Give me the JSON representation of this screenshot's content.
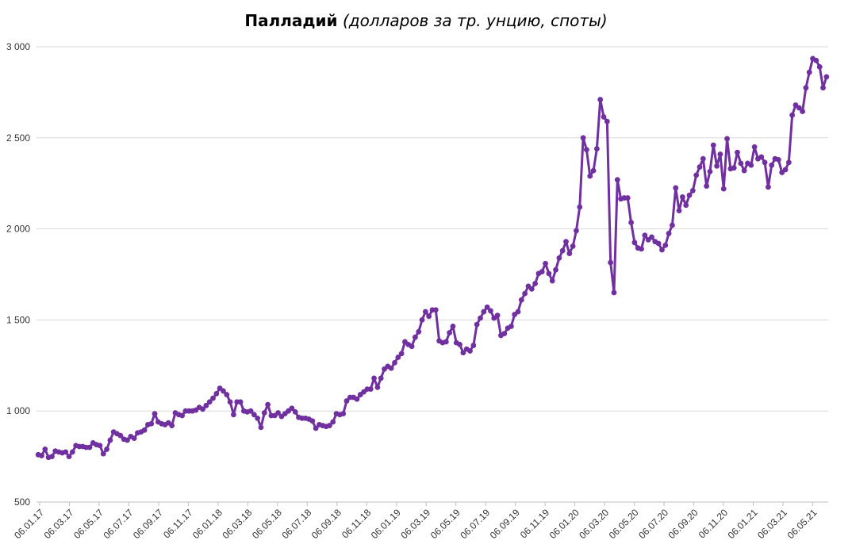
{
  "chart_data": {
    "type": "line",
    "title": "Палладий",
    "subtitle": "(долларов за тр. унцию, споты)",
    "xlabel": "",
    "ylabel": "",
    "ylim": [
      500,
      3000
    ],
    "yticks": [
      500,
      1000,
      1500,
      2000,
      2500,
      3000
    ],
    "ytick_labels": [
      "500",
      "1 000",
      "1 500",
      "2 000",
      "2 500",
      "3 000"
    ],
    "xtick_labels": [
      "06.01.17",
      "06.03.17",
      "06.05.17",
      "06.07.17",
      "06.09.17",
      "06.11.17",
      "06.01.18",
      "06.03.18",
      "06.05.18",
      "06.07.18",
      "06.09.18",
      "06.11.18",
      "06.01.19",
      "06.03.19",
      "06.05.19",
      "06.07.19",
      "06.09.19",
      "06.11.19",
      "06.01.20",
      "06.03.20",
      "06.05.20",
      "06.07.20",
      "06.09.20",
      "06.11.20",
      "06.01.21",
      "06.03.21",
      "06.05.21"
    ],
    "grid": true,
    "legend": "none",
    "series_color": "#7030A0",
    "series": [
      {
        "values": [
          760,
          755,
          790,
          745,
          750,
          780,
          775,
          770,
          775,
          750,
          775,
          810,
          805,
          805,
          800,
          800,
          825,
          815,
          810,
          765,
          790,
          840,
          885,
          875,
          865,
          845,
          840,
          860,
          850,
          880,
          885,
          895,
          925,
          930,
          985,
          940,
          930,
          925,
          935,
          920,
          990,
          980,
          975,
          1000,
          1000,
          1000,
          1005,
          1020,
          1010,
          1030,
          1050,
          1070,
          1095,
          1125,
          1110,
          1090,
          1050,
          980,
          1050,
          1050,
          1000,
          995,
          1000,
          980,
          960,
          910,
          990,
          1035,
          975,
          975,
          990,
          970,
          985,
          1000,
          1015,
          995,
          965,
          960,
          960,
          955,
          945,
          905,
          925,
          920,
          915,
          920,
          940,
          985,
          980,
          985,
          1055,
          1075,
          1075,
          1065,
          1090,
          1105,
          1120,
          1120,
          1180,
          1130,
          1180,
          1230,
          1245,
          1235,
          1265,
          1295,
          1315,
          1380,
          1365,
          1355,
          1405,
          1435,
          1500,
          1545,
          1520,
          1555,
          1555,
          1385,
          1375,
          1380,
          1430,
          1465,
          1375,
          1365,
          1320,
          1340,
          1330,
          1360,
          1475,
          1510,
          1545,
          1570,
          1550,
          1510,
          1525,
          1415,
          1425,
          1455,
          1465,
          1530,
          1545,
          1610,
          1645,
          1685,
          1670,
          1700,
          1755,
          1765,
          1810,
          1755,
          1715,
          1775,
          1840,
          1880,
          1930,
          1865,
          1905,
          1990,
          2120,
          2500,
          2435,
          2290,
          2320,
          2440,
          2710,
          2615,
          2590,
          1815,
          1650,
          2270,
          2165,
          2170,
          2170,
          2035,
          1925,
          1895,
          1890,
          1965,
          1940,
          1955,
          1930,
          1920,
          1885,
          1910,
          1975,
          2020,
          2225,
          2100,
          2175,
          2130,
          2185,
          2210,
          2295,
          2340,
          2385,
          2235,
          2315,
          2460,
          2345,
          2410,
          2220,
          2495,
          2330,
          2335,
          2420,
          2360,
          2320,
          2360,
          2350,
          2450,
          2385,
          2395,
          2365,
          2230,
          2350,
          2385,
          2380,
          2310,
          2325,
          2365,
          2625,
          2680,
          2665,
          2645,
          2775,
          2860,
          2935,
          2925,
          2890,
          2775,
          2835
        ]
      }
    ]
  }
}
